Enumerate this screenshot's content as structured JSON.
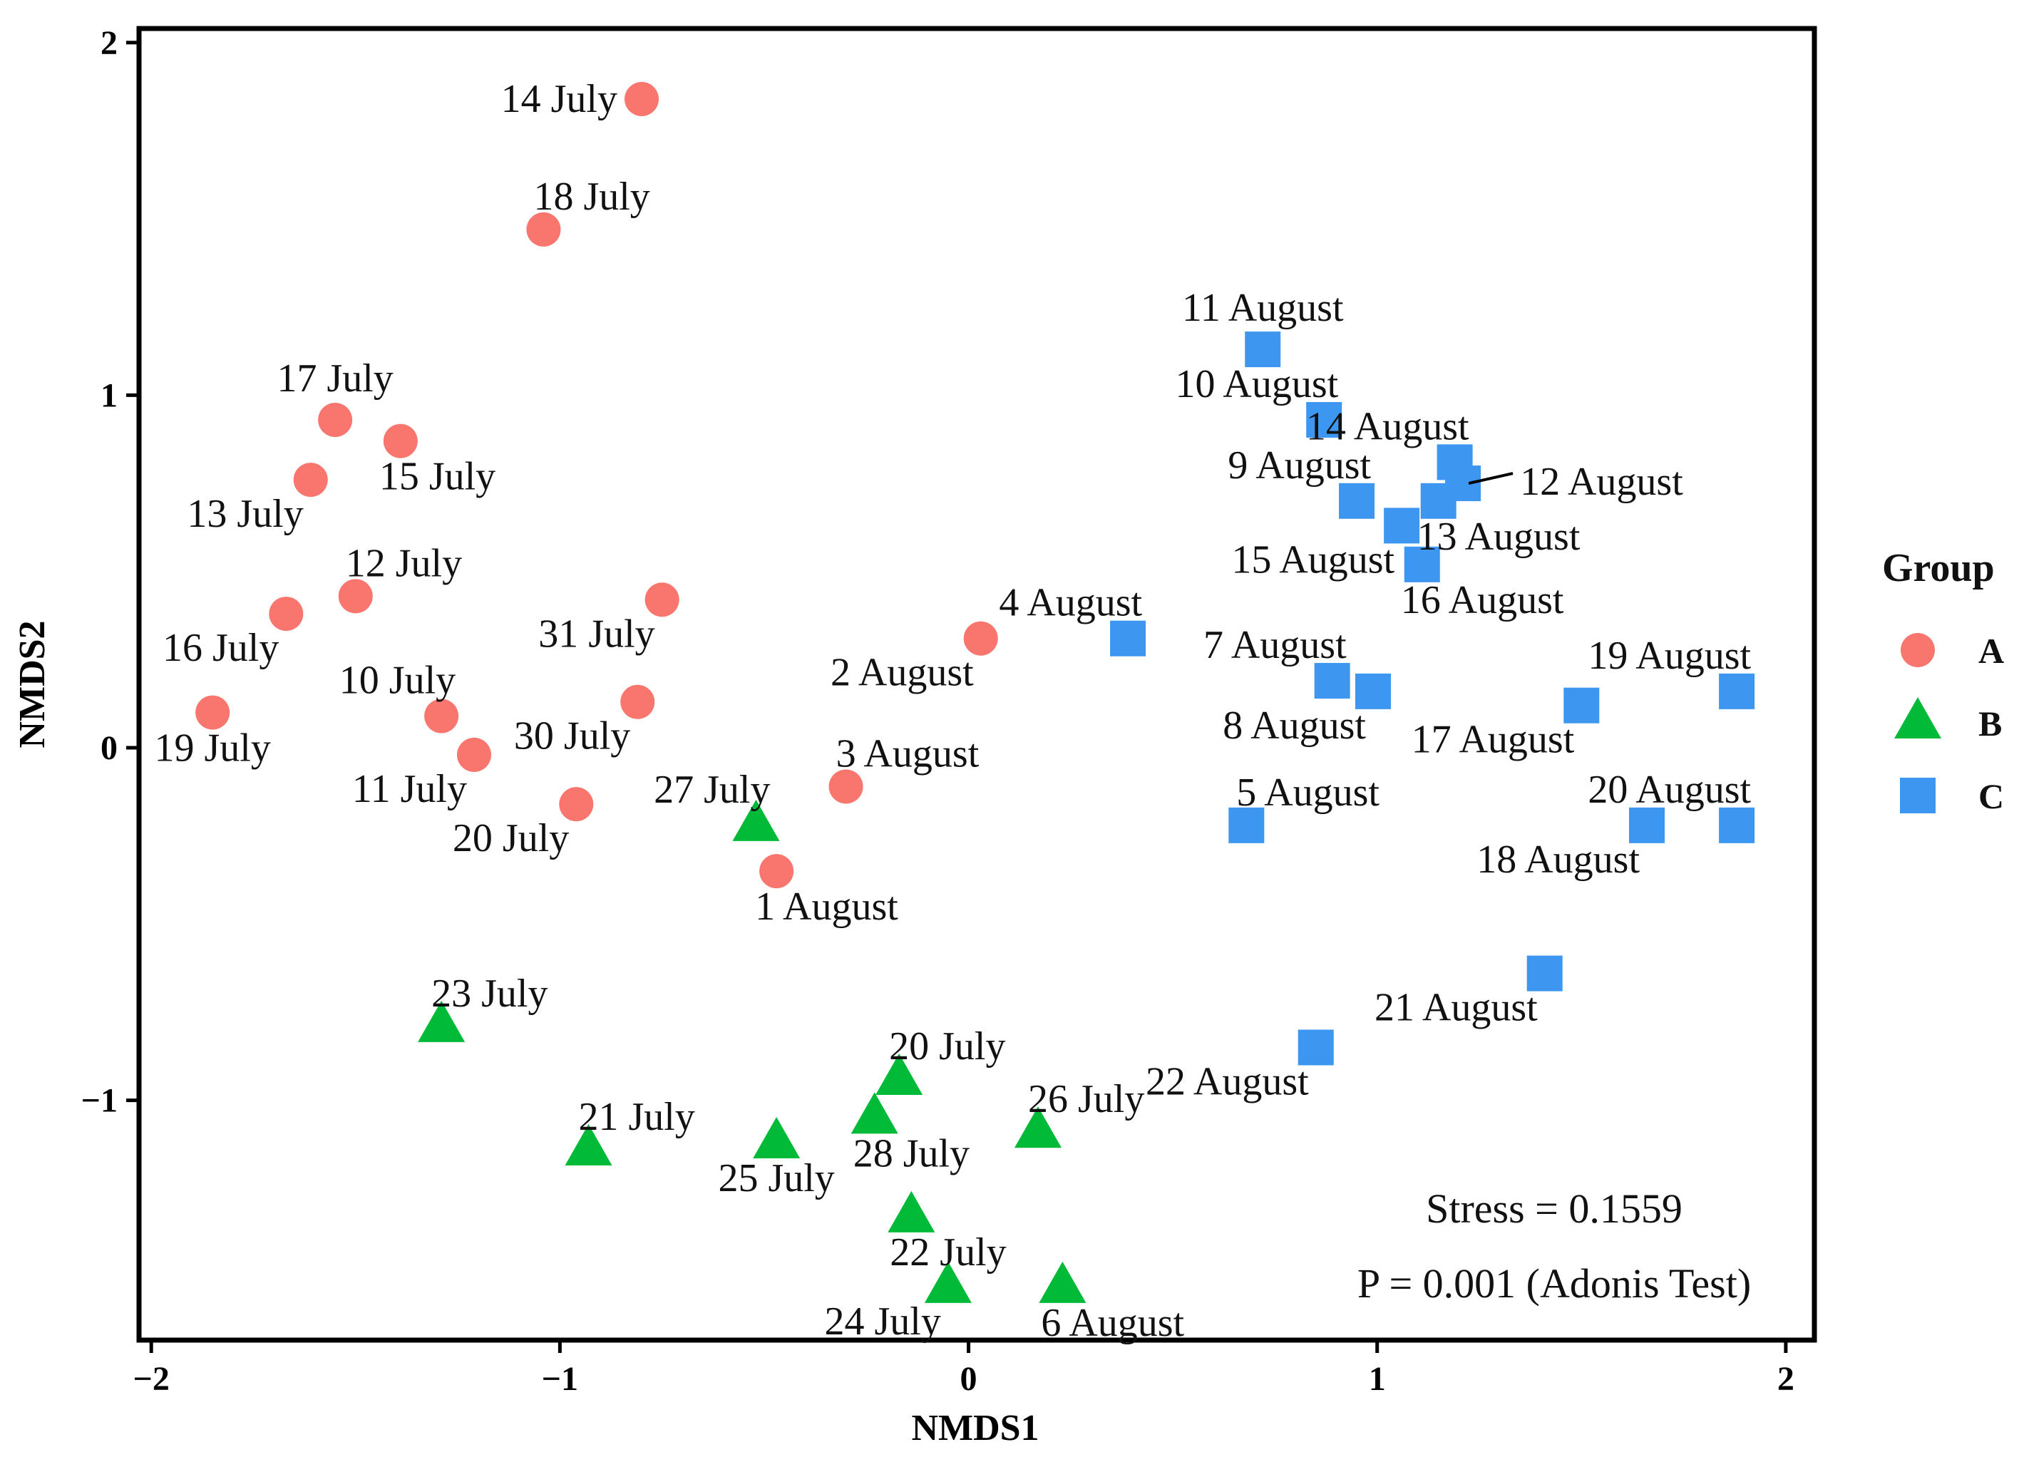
{
  "chart_data": {
    "type": "scatter",
    "xlabel": "NMDS1",
    "ylabel": "NMDS2",
    "xlim": [
      -2.03,
      2.07
    ],
    "ylim": [
      -1.68,
      2.04
    ],
    "xticks": [
      -2,
      -1,
      0,
      1,
      2
    ],
    "yticks": [
      -1,
      0,
      1,
      2
    ],
    "x_tick_labels": [
      "−2",
      "−1",
      "0",
      "1",
      "2"
    ],
    "y_tick_labels": [
      "−1",
      "0",
      "1",
      "2"
    ],
    "grid": false,
    "legend": {
      "title": "Group",
      "position": "right",
      "entries": [
        {
          "label": "A",
          "shape": "circle",
          "color": "#F8766D"
        },
        {
          "label": "B",
          "shape": "triangle",
          "color": "#00BA38"
        },
        {
          "label": "C",
          "shape": "square",
          "color": "#3D97F0"
        }
      ]
    },
    "annotations": [
      {
        "text": "Stress = 0.1559"
      },
      {
        "text": "P = 0.001 (Adonis Test)"
      }
    ],
    "series": [
      {
        "name": "A",
        "points": [
          {
            "label": "14 July",
            "x": -0.8,
            "y": 1.84,
            "label_side": "left"
          },
          {
            "label": "18 July",
            "x": -1.04,
            "y": 1.47,
            "label_side": "upper-right"
          },
          {
            "label": "17 July",
            "x": -1.55,
            "y": 0.93,
            "label_side": "above"
          },
          {
            "label": "15 July",
            "x": -1.39,
            "y": 0.87,
            "label_side": "below-right"
          },
          {
            "label": "13 July",
            "x": -1.61,
            "y": 0.76,
            "label_side": "below-left"
          },
          {
            "label": "12 July",
            "x": -1.5,
            "y": 0.43,
            "label_side": "upper-right"
          },
          {
            "label": "16 July",
            "x": -1.67,
            "y": 0.38,
            "label_side": "below-left"
          },
          {
            "label": "31 July",
            "x": -0.75,
            "y": 0.42,
            "label_side": "below-left"
          },
          {
            "label": "2 August",
            "x": 0.03,
            "y": 0.31,
            "label_side": "below-left"
          },
          {
            "label": "10 July",
            "x": -1.29,
            "y": 0.09,
            "label_side": "above-left"
          },
          {
            "label": "30 July",
            "x": -0.81,
            "y": 0.13,
            "label_side": "below-left"
          },
          {
            "label": "19 July",
            "x": -1.85,
            "y": 0.1,
            "label_side": "below"
          },
          {
            "label": "11 July",
            "x": -1.21,
            "y": -0.02,
            "label_side": "below-left"
          },
          {
            "label": "3 August",
            "x": -0.3,
            "y": -0.11,
            "label_side": "upper-right"
          },
          {
            "label": "20 July",
            "x": -0.96,
            "y": -0.16,
            "label_side": "below-left"
          },
          {
            "label": "1 August",
            "x": -0.47,
            "y": -0.35,
            "label_side": "below-right"
          }
        ]
      },
      {
        "name": "B",
        "points": [
          {
            "label": "27 July",
            "x": -0.52,
            "y": -0.22,
            "label_side": "above-left"
          },
          {
            "label": "23 July",
            "x": -1.29,
            "y": -0.79,
            "label_side": "upper-right"
          },
          {
            "label": "20 July",
            "x": -0.17,
            "y": -0.94,
            "label_side": "upper-right"
          },
          {
            "label": "26 July",
            "x": 0.17,
            "y": -1.09,
            "label_side": "upper-right"
          },
          {
            "label": "21 July",
            "x": -0.93,
            "y": -1.14,
            "label_side": "upper-right"
          },
          {
            "label": "25 July",
            "x": -0.47,
            "y": -1.12,
            "label_side": "below"
          },
          {
            "label": "28 July",
            "x": -0.23,
            "y": -1.05,
            "label_side": "below-right"
          },
          {
            "label": "22 July",
            "x": -0.14,
            "y": -1.33,
            "label_side": "below-right"
          },
          {
            "label": "24 July",
            "x": -0.05,
            "y": -1.53,
            "label_side": "below-left"
          },
          {
            "label": "6 August",
            "x": 0.23,
            "y": -1.53,
            "label_side": "below-right"
          }
        ]
      },
      {
        "name": "C",
        "points": [
          {
            "label": "11 August",
            "x": 0.72,
            "y": 1.13,
            "label_side": "above"
          },
          {
            "label": "10 August",
            "x": 0.87,
            "y": 0.93,
            "label_side": "above-left"
          },
          {
            "label": "14 August",
            "x": 1.19,
            "y": 0.81,
            "label_side": "above-left"
          },
          {
            "label": "12 August",
            "x": 1.21,
            "y": 0.75,
            "label_side": "right"
          },
          {
            "label": "9 August",
            "x": 0.95,
            "y": 0.7,
            "label_side": "above-left"
          },
          {
            "label": "13 August",
            "x": 1.15,
            "y": 0.7,
            "label_side": "below-right"
          },
          {
            "label": "15 August",
            "x": 1.06,
            "y": 0.63,
            "label_side": "below-left"
          },
          {
            "label": "16 August",
            "x": 1.11,
            "y": 0.52,
            "label_side": "below-right"
          },
          {
            "label": "4 August",
            "x": 0.39,
            "y": 0.31,
            "label_side": "above-left"
          },
          {
            "label": "7 August",
            "x": 0.89,
            "y": 0.19,
            "label_side": "above-left"
          },
          {
            "label": "8 August",
            "x": 0.99,
            "y": 0.16,
            "label_side": "below-left"
          },
          {
            "label": "19 August",
            "x": 1.88,
            "y": 0.16,
            "label_side": "above-left"
          },
          {
            "label": "17 August",
            "x": 1.5,
            "y": 0.12,
            "label_side": "below-left"
          },
          {
            "label": "5 August",
            "x": 0.68,
            "y": -0.22,
            "label_side": "upper-right"
          },
          {
            "label": "20 August",
            "x": 1.88,
            "y": -0.22,
            "label_side": "above-left"
          },
          {
            "label": "18 August",
            "x": 1.66,
            "y": -0.22,
            "label_side": "below-left"
          },
          {
            "label": "21 August",
            "x": 1.41,
            "y": -0.64,
            "label_side": "below-left"
          },
          {
            "label": "22 August",
            "x": 0.85,
            "y": -0.85,
            "label_side": "below-left"
          }
        ]
      }
    ]
  }
}
